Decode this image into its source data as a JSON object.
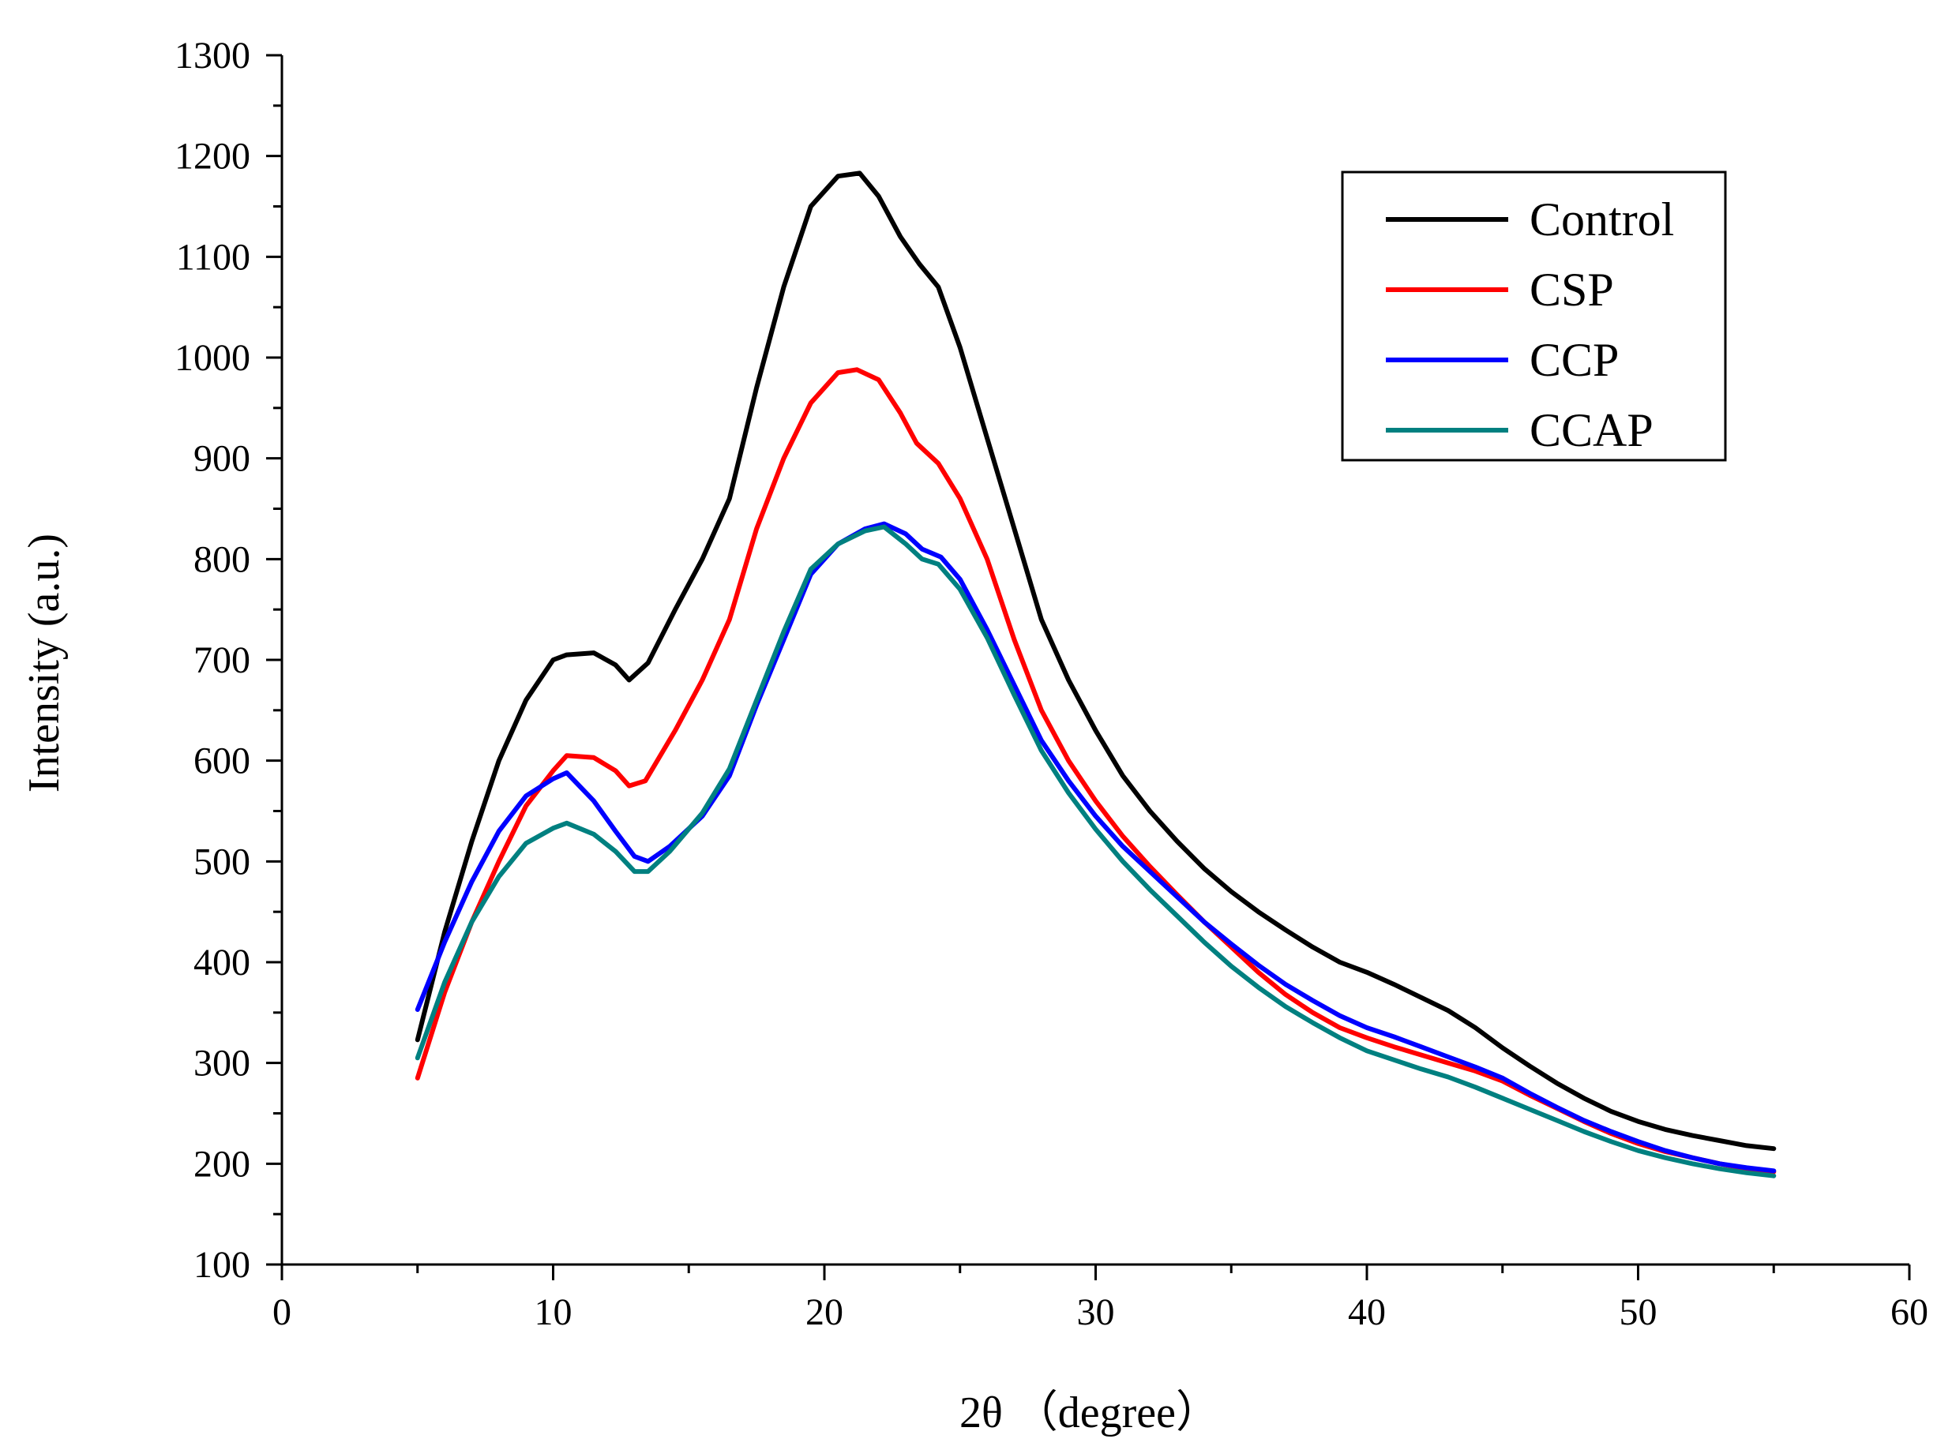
{
  "chart_data": {
    "type": "line",
    "xlabel": "2θ （degree）",
    "ylabel": "Intensity (a.u.)",
    "xlim": [
      0,
      60
    ],
    "ylim": [
      100,
      1300
    ],
    "xticks": [
      0,
      10,
      20,
      30,
      40,
      50,
      60
    ],
    "yticks": [
      100,
      200,
      300,
      400,
      500,
      600,
      700,
      800,
      900,
      1000,
      1100,
      1200,
      1300
    ],
    "grid": false,
    "legend_position": "top-right",
    "series": [
      {
        "name": "Control",
        "color": "#000000",
        "points": [
          [
            5,
            323
          ],
          [
            6,
            430
          ],
          [
            7,
            520
          ],
          [
            8,
            600
          ],
          [
            9,
            660
          ],
          [
            10,
            700
          ],
          [
            10.5,
            705
          ],
          [
            11.5,
            707
          ],
          [
            12.3,
            695
          ],
          [
            12.8,
            680
          ],
          [
            13.5,
            697
          ],
          [
            14.5,
            750
          ],
          [
            15.5,
            800
          ],
          [
            16.5,
            860
          ],
          [
            17.5,
            970
          ],
          [
            18.5,
            1070
          ],
          [
            19.5,
            1150
          ],
          [
            20.5,
            1180
          ],
          [
            21.3,
            1183
          ],
          [
            22,
            1160
          ],
          [
            22.8,
            1120
          ],
          [
            23.5,
            1093
          ],
          [
            24.2,
            1070
          ],
          [
            25,
            1010
          ],
          [
            26,
            920
          ],
          [
            27,
            830
          ],
          [
            28,
            740
          ],
          [
            29,
            680
          ],
          [
            30,
            630
          ],
          [
            31,
            585
          ],
          [
            32,
            550
          ],
          [
            33,
            520
          ],
          [
            34,
            493
          ],
          [
            35,
            470
          ],
          [
            36,
            450
          ],
          [
            37,
            432
          ],
          [
            38,
            415
          ],
          [
            39,
            400
          ],
          [
            40,
            390
          ],
          [
            41,
            378
          ],
          [
            42,
            365
          ],
          [
            43,
            352
          ],
          [
            44,
            335
          ],
          [
            45,
            315
          ],
          [
            46,
            297
          ],
          [
            47,
            280
          ],
          [
            48,
            265
          ],
          [
            49,
            252
          ],
          [
            50,
            242
          ],
          [
            51,
            234
          ],
          [
            52,
            228
          ],
          [
            53,
            223
          ],
          [
            54,
            218
          ],
          [
            55,
            215
          ]
        ]
      },
      {
        "name": "CSP",
        "color": "#ff0000",
        "points": [
          [
            5,
            285
          ],
          [
            6,
            370
          ],
          [
            7,
            440
          ],
          [
            8,
            500
          ],
          [
            9,
            555
          ],
          [
            10,
            590
          ],
          [
            10.5,
            605
          ],
          [
            11.5,
            603
          ],
          [
            12.3,
            590
          ],
          [
            12.8,
            575
          ],
          [
            13.4,
            580
          ],
          [
            14.5,
            630
          ],
          [
            15.5,
            680
          ],
          [
            16.5,
            740
          ],
          [
            17.5,
            830
          ],
          [
            18.5,
            900
          ],
          [
            19.5,
            955
          ],
          [
            20.5,
            985
          ],
          [
            21.2,
            988
          ],
          [
            22,
            978
          ],
          [
            22.8,
            945
          ],
          [
            23.4,
            915
          ],
          [
            24.2,
            895
          ],
          [
            25,
            860
          ],
          [
            26,
            800
          ],
          [
            27,
            720
          ],
          [
            28,
            650
          ],
          [
            29,
            600
          ],
          [
            30,
            560
          ],
          [
            31,
            525
          ],
          [
            32,
            495
          ],
          [
            33,
            467
          ],
          [
            34,
            440
          ],
          [
            35,
            415
          ],
          [
            36,
            390
          ],
          [
            37,
            368
          ],
          [
            38,
            350
          ],
          [
            39,
            335
          ],
          [
            40,
            325
          ],
          [
            41,
            316
          ],
          [
            42,
            308
          ],
          [
            43,
            300
          ],
          [
            44,
            292
          ],
          [
            45,
            282
          ],
          [
            46,
            268
          ],
          [
            47,
            255
          ],
          [
            48,
            242
          ],
          [
            49,
            230
          ],
          [
            50,
            220
          ],
          [
            51,
            212
          ],
          [
            52,
            206
          ],
          [
            53,
            200
          ],
          [
            54,
            195
          ],
          [
            55,
            192
          ]
        ]
      },
      {
        "name": "CCP",
        "color": "#0000ff",
        "points": [
          [
            5,
            353
          ],
          [
            6,
            420
          ],
          [
            7,
            480
          ],
          [
            8,
            530
          ],
          [
            9,
            565
          ],
          [
            10,
            582
          ],
          [
            10.5,
            588
          ],
          [
            11.5,
            560
          ],
          [
            12.3,
            530
          ],
          [
            13,
            505
          ],
          [
            13.5,
            500
          ],
          [
            14.3,
            515
          ],
          [
            15.5,
            545
          ],
          [
            16.5,
            585
          ],
          [
            17.5,
            655
          ],
          [
            18.5,
            720
          ],
          [
            19.5,
            785
          ],
          [
            20.5,
            815
          ],
          [
            21.5,
            830
          ],
          [
            22.2,
            835
          ],
          [
            23,
            825
          ],
          [
            23.6,
            810
          ],
          [
            24.3,
            802
          ],
          [
            25,
            780
          ],
          [
            26,
            730
          ],
          [
            27,
            675
          ],
          [
            28,
            620
          ],
          [
            29,
            580
          ],
          [
            30,
            545
          ],
          [
            31,
            515
          ],
          [
            32,
            490
          ],
          [
            33,
            465
          ],
          [
            34,
            440
          ],
          [
            35,
            418
          ],
          [
            36,
            397
          ],
          [
            37,
            378
          ],
          [
            38,
            362
          ],
          [
            39,
            347
          ],
          [
            40,
            335
          ],
          [
            41,
            326
          ],
          [
            42,
            316
          ],
          [
            43,
            306
          ],
          [
            44,
            296
          ],
          [
            45,
            285
          ],
          [
            46,
            270
          ],
          [
            47,
            256
          ],
          [
            48,
            243
          ],
          [
            49,
            232
          ],
          [
            50,
            222
          ],
          [
            51,
            213
          ],
          [
            52,
            206
          ],
          [
            53,
            200
          ],
          [
            54,
            196
          ],
          [
            55,
            193
          ]
        ]
      },
      {
        "name": "CCAP",
        "color": "#008080",
        "points": [
          [
            5,
            305
          ],
          [
            6,
            380
          ],
          [
            7,
            440
          ],
          [
            8,
            485
          ],
          [
            9,
            518
          ],
          [
            10,
            533
          ],
          [
            10.5,
            538
          ],
          [
            11.5,
            527
          ],
          [
            12.3,
            510
          ],
          [
            13,
            490
          ],
          [
            13.5,
            490
          ],
          [
            14.3,
            510
          ],
          [
            15.5,
            548
          ],
          [
            16.5,
            592
          ],
          [
            17.5,
            660
          ],
          [
            18.5,
            728
          ],
          [
            19.5,
            790
          ],
          [
            20.5,
            815
          ],
          [
            21.5,
            828
          ],
          [
            22.2,
            832
          ],
          [
            23,
            815
          ],
          [
            23.6,
            800
          ],
          [
            24.2,
            795
          ],
          [
            25,
            770
          ],
          [
            26,
            722
          ],
          [
            27,
            665
          ],
          [
            28,
            610
          ],
          [
            29,
            568
          ],
          [
            30,
            532
          ],
          [
            31,
            500
          ],
          [
            32,
            472
          ],
          [
            33,
            446
          ],
          [
            34,
            420
          ],
          [
            35,
            396
          ],
          [
            36,
            375
          ],
          [
            37,
            356
          ],
          [
            38,
            340
          ],
          [
            39,
            325
          ],
          [
            40,
            312
          ],
          [
            41,
            303
          ],
          [
            42,
            294
          ],
          [
            43,
            286
          ],
          [
            44,
            276
          ],
          [
            45,
            265
          ],
          [
            46,
            254
          ],
          [
            47,
            243
          ],
          [
            48,
            232
          ],
          [
            49,
            222
          ],
          [
            50,
            213
          ],
          [
            51,
            206
          ],
          [
            52,
            200
          ],
          [
            53,
            195
          ],
          [
            54,
            191
          ],
          [
            55,
            188
          ]
        ]
      }
    ]
  }
}
